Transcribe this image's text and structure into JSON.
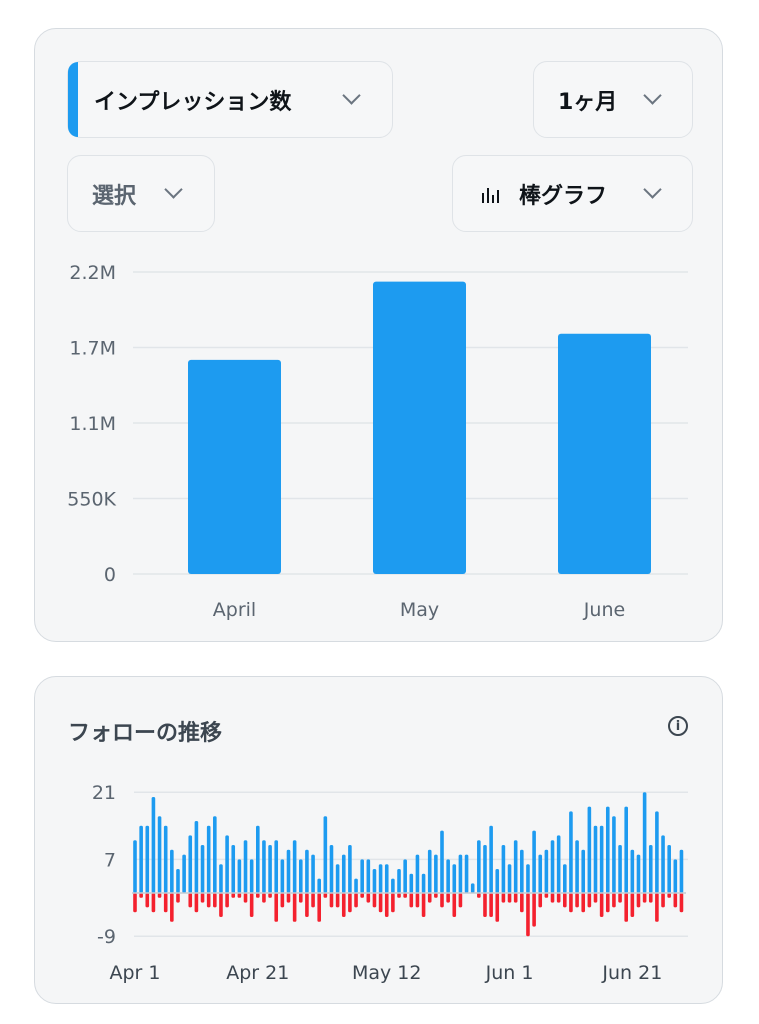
{
  "controls": {
    "metric": "インプレッション数",
    "period": "1ヶ月",
    "select": "選択",
    "chart_type": "棒グラフ",
    "accent_color": "#1d9bf0"
  },
  "follow_card": {
    "title": "フォローの推移",
    "info_icon": "info-circle-icon"
  },
  "chart_data": [
    {
      "type": "bar",
      "categories": [
        "April",
        "May",
        "June"
      ],
      "values": [
        1560000,
        2130000,
        1750000
      ],
      "ylim": [
        0,
        2200000
      ],
      "yticks": [
        0,
        550000,
        1100000,
        1650000,
        2200000
      ],
      "ytick_labels": [
        "0",
        "550K",
        "1.1M",
        "1.7M",
        "2.2M"
      ],
      "grid": true,
      "color": "#1d9bf0"
    },
    {
      "type": "bar",
      "x_start": "Apr 1",
      "xtick_labels": [
        "Apr 1",
        "Apr 21",
        "May 12",
        "Jun 1",
        "Jun 21"
      ],
      "xtick_index": [
        0,
        20,
        41,
        61,
        81
      ],
      "ylim": [
        -9,
        21
      ],
      "yticks": [
        21,
        7,
        -9
      ],
      "ytick_labels": [
        "21",
        "7",
        "-9"
      ],
      "grid": true,
      "series": [
        {
          "color": "#1d9bf0",
          "values": [
            11,
            14,
            14,
            20,
            16,
            14,
            9,
            5,
            8,
            12,
            15,
            10,
            14,
            16,
            6,
            12,
            10,
            7,
            11,
            7,
            14,
            11,
            10,
            11,
            7,
            9,
            11,
            7,
            9,
            8,
            3,
            16,
            10,
            6,
            8,
            10,
            3,
            7,
            7,
            5,
            6,
            6,
            3,
            5,
            7,
            4,
            8,
            4,
            9,
            8,
            13,
            7,
            6,
            8,
            8,
            2,
            11,
            10,
            14,
            5,
            10,
            6,
            11,
            9,
            6,
            13,
            8,
            9,
            11,
            12,
            6,
            17,
            11,
            9,
            18,
            14,
            14,
            18,
            16,
            10,
            18,
            9,
            8,
            21,
            10,
            17,
            12,
            10,
            7,
            9
          ]
        },
        {
          "color": "#f4212e",
          "values": [
            -4,
            -1,
            -3,
            -4,
            -1,
            -4,
            -6,
            -2,
            0,
            -3,
            -4,
            -2,
            -3,
            -3,
            -5,
            -3,
            -1,
            -1,
            -2,
            -5,
            -1,
            -2,
            -1,
            -6,
            -3,
            -2,
            -6,
            -2,
            -5,
            -3,
            -6,
            -1,
            -3,
            -3,
            -5,
            -4,
            -3,
            -1,
            -2,
            -3,
            -4,
            -5,
            -4,
            -1,
            -1,
            -3,
            -3,
            -5,
            -2,
            -1,
            -3,
            -2,
            -5,
            -3,
            0,
            0,
            -1,
            -5,
            -5,
            -6,
            -2,
            -2,
            -2,
            -4,
            -9,
            -7,
            -3,
            -1,
            -2,
            -2,
            -3,
            -4,
            -3,
            -4,
            -3,
            -2,
            -5,
            -4,
            -3,
            -2,
            -6,
            -5,
            -3,
            -2,
            -2,
            -6,
            -3,
            -1,
            -3,
            -4
          ]
        }
      ]
    }
  ]
}
